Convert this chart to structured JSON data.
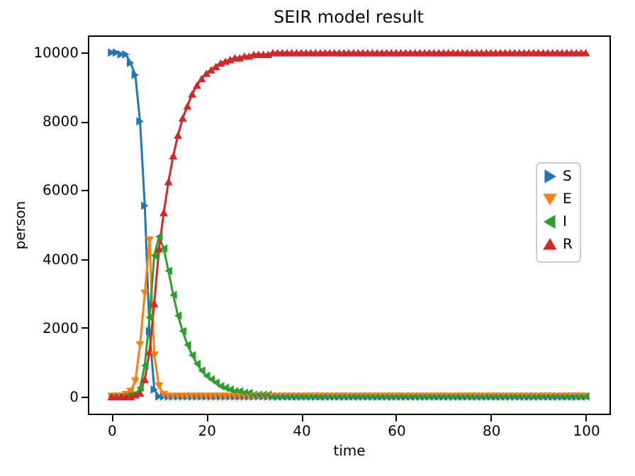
{
  "chart_data": {
    "type": "line",
    "title": "SEIR model result",
    "xlabel": "time",
    "ylabel": "person",
    "x": [
      0,
      1,
      2,
      3,
      4,
      5,
      6,
      7,
      8,
      9,
      10,
      11,
      12,
      13,
      14,
      15,
      16,
      17,
      18,
      19,
      20,
      21,
      22,
      23,
      24,
      25,
      26,
      27,
      28,
      29,
      30,
      31,
      32,
      33,
      34,
      35,
      36,
      37,
      38,
      39,
      40,
      41,
      42,
      43,
      44,
      45,
      46,
      47,
      48,
      49,
      50,
      51,
      52,
      53,
      54,
      55,
      56,
      57,
      58,
      59,
      60,
      61,
      62,
      63,
      64,
      65,
      66,
      67,
      68,
      69,
      70,
      71,
      72,
      73,
      74,
      75,
      76,
      77,
      78,
      79,
      80,
      81,
      82,
      83,
      84,
      85,
      86,
      87,
      88,
      89,
      90,
      91,
      92,
      93,
      94,
      95,
      96,
      97,
      98,
      99,
      100
    ],
    "series": [
      {
        "name": "S",
        "color": "#1f77b4",
        "values": [
          10000,
          10000,
          9950,
          9950,
          9700,
          9350,
          8000,
          5550,
          1900,
          200,
          0,
          0,
          0,
          0,
          0,
          0,
          0,
          0,
          0,
          0,
          0,
          0,
          0,
          0,
          0,
          0,
          0,
          0,
          0,
          0,
          0,
          0,
          0,
          0,
          0,
          0,
          0,
          0,
          0,
          0,
          0,
          0,
          0,
          0,
          0,
          0,
          0,
          0,
          0,
          0,
          0,
          0,
          0,
          0,
          0,
          0,
          0,
          0,
          0,
          0,
          0,
          0,
          0,
          0,
          0,
          0,
          0,
          0,
          0,
          0,
          0,
          0,
          0,
          0,
          0,
          0,
          0,
          0,
          0,
          0,
          0,
          0,
          0,
          0,
          0,
          0,
          0,
          0,
          0,
          0,
          0,
          0,
          0,
          0,
          0,
          0,
          0,
          0,
          0,
          0,
          0
        ]
      },
      {
        "name": "E",
        "color": "#ff7f0e",
        "values": [
          0,
          0,
          0,
          50,
          150,
          450,
          1500,
          3000,
          4550,
          1200,
          300,
          50,
          0,
          0,
          0,
          0,
          0,
          0,
          0,
          0,
          0,
          0,
          0,
          0,
          0,
          0,
          0,
          0,
          0,
          0,
          0,
          0,
          0,
          0,
          0,
          0,
          0,
          0,
          0,
          0,
          0,
          0,
          0,
          0,
          0,
          0,
          0,
          0,
          0,
          0,
          0,
          0,
          0,
          0,
          0,
          0,
          0,
          0,
          0,
          0,
          0,
          0,
          0,
          0,
          0,
          0,
          0,
          0,
          0,
          0,
          0,
          0,
          0,
          0,
          0,
          0,
          0,
          0,
          0,
          0,
          0,
          0,
          0,
          0,
          0,
          0,
          0,
          0,
          0,
          0,
          0,
          0,
          0,
          0,
          0,
          0,
          0,
          0,
          0,
          0,
          0
        ]
      },
      {
        "name": "I",
        "color": "#2ca02c",
        "values": [
          0,
          0,
          0,
          0,
          50,
          50,
          250,
          900,
          2300,
          4100,
          4650,
          4300,
          3650,
          2950,
          2350,
          1900,
          1500,
          1200,
          950,
          750,
          600,
          500,
          400,
          300,
          250,
          200,
          150,
          150,
          100,
          100,
          50,
          50,
          50,
          50,
          0,
          0,
          0,
          0,
          0,
          0,
          0,
          0,
          0,
          0,
          0,
          0,
          0,
          0,
          0,
          0,
          0,
          0,
          0,
          0,
          0,
          0,
          0,
          0,
          0,
          0,
          0,
          0,
          0,
          0,
          0,
          0,
          0,
          0,
          0,
          0,
          0,
          0,
          0,
          0,
          0,
          0,
          0,
          0,
          0,
          0,
          0,
          0,
          0,
          0,
          0,
          0,
          0,
          0,
          0,
          0,
          0,
          0,
          0,
          0,
          0,
          0,
          0,
          0,
          0,
          0,
          0
        ]
      },
      {
        "name": "R",
        "color": "#d62728",
        "values": [
          0,
          0,
          0,
          0,
          0,
          50,
          100,
          500,
          1300,
          2700,
          4300,
          5350,
          6250,
          7000,
          7600,
          8100,
          8450,
          8800,
          9050,
          9250,
          9400,
          9500,
          9600,
          9700,
          9750,
          9800,
          9850,
          9850,
          9900,
          9900,
          9950,
          9950,
          9950,
          9950,
          10000,
          10000,
          10000,
          10000,
          10000,
          10000,
          10000,
          10000,
          10000,
          10000,
          10000,
          10000,
          10000,
          10000,
          10000,
          10000,
          10000,
          10000,
          10000,
          10000,
          10000,
          10000,
          10000,
          10000,
          10000,
          10000,
          10000,
          10000,
          10000,
          10000,
          10000,
          10000,
          10000,
          10000,
          10000,
          10000,
          10000,
          10000,
          10000,
          10000,
          10000,
          10000,
          10000,
          10000,
          10000,
          10000,
          10000,
          10000,
          10000,
          10000,
          10000,
          10000,
          10000,
          10000,
          10000,
          10000,
          10000,
          10000,
          10000,
          10000,
          10000,
          10000,
          10000,
          10000,
          10000,
          10000,
          10000
        ]
      }
    ],
    "xlim": [
      -5,
      105
    ],
    "ylim": [
      -500,
      10500
    ],
    "xticks": [
      0,
      20,
      40,
      60,
      80,
      100
    ],
    "yticks": [
      0,
      2000,
      4000,
      6000,
      8000,
      10000
    ],
    "legend": "right",
    "marker": "triangle",
    "line_style": "solid"
  }
}
